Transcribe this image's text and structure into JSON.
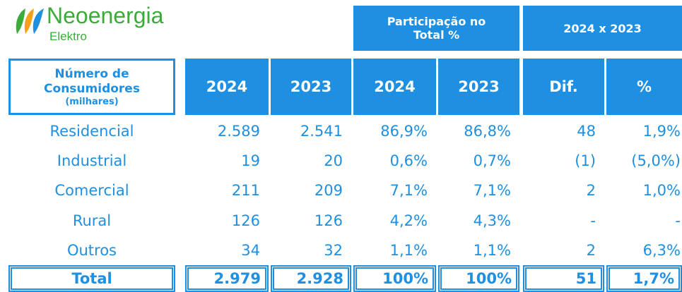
{
  "logo": {
    "name": "Neoenergia",
    "subtitle": "Elektro"
  },
  "table": {
    "group_headers": [
      "Participação no Total %",
      "2024 x 2023"
    ],
    "first_header": {
      "label": "Número de Consumidores",
      "unit": "(milhares)"
    },
    "columns": [
      "2024",
      "2023",
      "2024",
      "2023",
      "Dif.",
      "%"
    ],
    "rows": [
      [
        "Residencial",
        "2.589",
        "2.541",
        "86,9%",
        "86,8%",
        "48",
        "1,9%"
      ],
      [
        "Industrial",
        "19",
        "20",
        "0,6%",
        "0,7%",
        "(1)",
        "(5,0%)"
      ],
      [
        "Comercial",
        "211",
        "209",
        "7,1%",
        "7,1%",
        "2",
        "1,0%"
      ],
      [
        "Rural",
        "126",
        "126",
        "4,2%",
        "4,3%",
        "-",
        "-"
      ],
      [
        "Outros",
        "34",
        "32",
        "1,1%",
        "1,1%",
        "2",
        "6,3%"
      ]
    ],
    "total": [
      "Total",
      "2.979",
      "2.928",
      "100%",
      "100%",
      "51",
      "1,7%"
    ]
  }
}
